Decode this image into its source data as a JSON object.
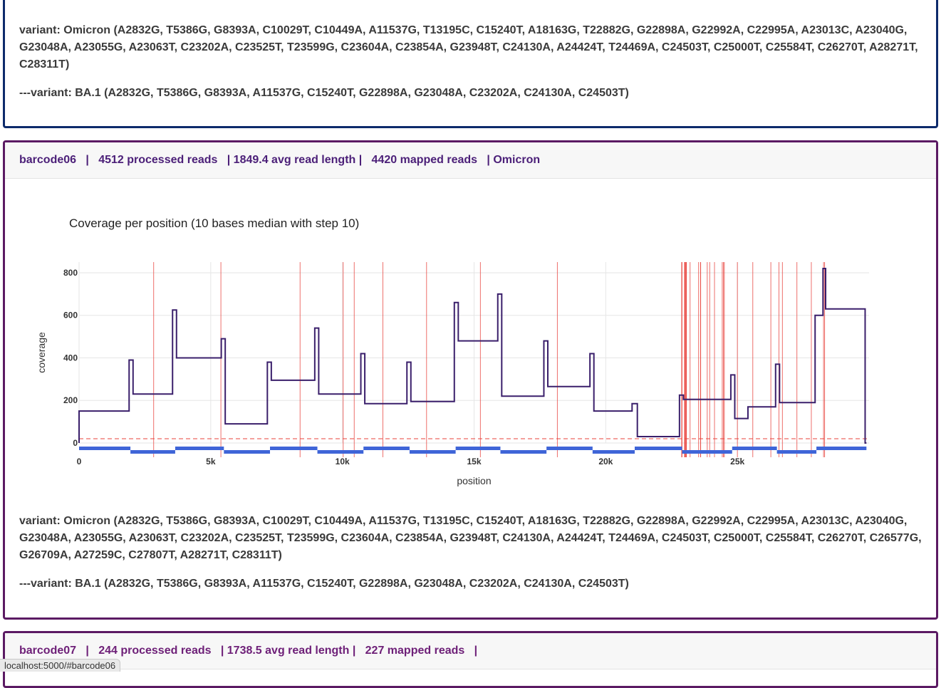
{
  "top_panel": {
    "variant_line": "variant: Omicron (A2832G, T5386G, G8393A, C10029T, C10449A, A11537G, T13195C, C15240T, A18163G, T22882G, G22898A, G22992A, C22995A, A23013C, A23040G, G23048A, A23055G, A23063T, C23202A, C23525T, T23599G, C23604A, C23854A, G23948T, C24130A, A24424T, T24469A, C24503T, C25000T, C25584T, C26270T, A28271T, C28311T)",
    "subvariant_line": "---variant: BA.1 (A2832G, T5386G, G8393A, A11537G, C15240T, G22898A, G23048A, C23202A, C24130A, C24503T)"
  },
  "barcode06": {
    "header": "barcode06   |   4512 processed reads   | 1849.4 avg read length |   4420 mapped reads   | Omicron",
    "chart_title": "Coverage per position (10 bases median with step 10)",
    "variant_line": "variant: Omicron (A2832G, T5386G, G8393A, C10029T, C10449A, A11537G, T13195C, C15240T, A18163G, T22882G, G22898A, G22992A, C22995A, A23013C, A23040G, G23048A, A23055G, A23063T, C23202A, C23525T, T23599G, C23604A, C23854A, G23948T, C24130A, A24424T, T24469A, C24503T, C25000T, C25584T, C26270T, C26577G, G26709A, A27259C, C27807T, A28271T, C28311T)",
    "subvariant_line": "---variant: BA.1 (A2832G, T5386G, G8393A, A11537G, C15240T, G22898A, G23048A, C23202A, C24130A, C24503T)"
  },
  "barcode07": {
    "header": "barcode07   |   244 processed reads   | 1738.5 avg read length |   227 mapped reads   |"
  },
  "status_bar": "localhost:5000/#barcode06",
  "chart_data": {
    "type": "line",
    "title": "Coverage per position (10 bases median with step 10)",
    "xlabel": "position",
    "ylabel": "coverage",
    "xlim": [
      0,
      30000
    ],
    "ylim": [
      0,
      850
    ],
    "x_ticks": [
      0,
      5000,
      10000,
      15000,
      20000,
      25000
    ],
    "x_tick_labels": [
      "0",
      "5k",
      "10k",
      "15k",
      "20k",
      "25k"
    ],
    "y_ticks": [
      0,
      200,
      400,
      600,
      800
    ],
    "threshold": 20,
    "series": [
      {
        "segments": [
          {
            "x0": 0,
            "x1": 1900,
            "y": 150
          },
          {
            "x0": 1900,
            "x1": 2050,
            "y": 390
          },
          {
            "x0": 2050,
            "x1": 3550,
            "y": 230
          },
          {
            "x0": 3550,
            "x1": 3700,
            "y": 625
          },
          {
            "x0": 3700,
            "x1": 5400,
            "y": 400
          },
          {
            "x0": 5400,
            "x1": 5550,
            "y": 490
          },
          {
            "x0": 5550,
            "x1": 7150,
            "y": 90
          },
          {
            "x0": 7150,
            "x1": 7300,
            "y": 380
          },
          {
            "x0": 7300,
            "x1": 8950,
            "y": 295
          },
          {
            "x0": 8950,
            "x1": 9100,
            "y": 540
          },
          {
            "x0": 9100,
            "x1": 10700,
            "y": 230
          },
          {
            "x0": 10700,
            "x1": 10850,
            "y": 420
          },
          {
            "x0": 10850,
            "x1": 12450,
            "y": 185
          },
          {
            "x0": 12450,
            "x1": 12600,
            "y": 380
          },
          {
            "x0": 12600,
            "x1": 14250,
            "y": 195
          },
          {
            "x0": 14250,
            "x1": 14400,
            "y": 660
          },
          {
            "x0": 14400,
            "x1": 15900,
            "y": 480
          },
          {
            "x0": 15900,
            "x1": 16050,
            "y": 700
          },
          {
            "x0": 16050,
            "x1": 17650,
            "y": 220
          },
          {
            "x0": 17650,
            "x1": 17800,
            "y": 480
          },
          {
            "x0": 17800,
            "x1": 19400,
            "y": 265
          },
          {
            "x0": 19400,
            "x1": 19550,
            "y": 420
          },
          {
            "x0": 19550,
            "x1": 21000,
            "y": 150
          },
          {
            "x0": 21000,
            "x1": 21200,
            "y": 185
          },
          {
            "x0": 21200,
            "x1": 22800,
            "y": 30
          },
          {
            "x0": 22800,
            "x1": 22950,
            "y": 225
          },
          {
            "x0": 22950,
            "x1": 24750,
            "y": 205
          },
          {
            "x0": 24750,
            "x1": 24900,
            "y": 320
          },
          {
            "x0": 24900,
            "x1": 25400,
            "y": 115
          },
          {
            "x0": 25400,
            "x1": 26450,
            "y": 170
          },
          {
            "x0": 26450,
            "x1": 26600,
            "y": 370
          },
          {
            "x0": 26600,
            "x1": 27950,
            "y": 190
          },
          {
            "x0": 27950,
            "x1": 28250,
            "y": 600
          },
          {
            "x0": 28250,
            "x1": 28350,
            "y": 820
          },
          {
            "x0": 28350,
            "x1": 29850,
            "y": 630
          },
          {
            "x0": 29850,
            "x1": 29900,
            "y": 0
          }
        ]
      }
    ],
    "mutation_positions": [
      2832,
      5386,
      8393,
      10029,
      10449,
      11537,
      13195,
      15240,
      18163,
      22882,
      22898,
      22992,
      22995,
      23013,
      23040,
      23048,
      23055,
      23063,
      23202,
      23525,
      23599,
      23604,
      23854,
      23948,
      24130,
      24424,
      24469,
      24503,
      25000,
      25584,
      26270,
      26577,
      26709,
      27259,
      27807,
      28271,
      28311
    ],
    "amplicons": [
      {
        "x0": 0,
        "x1": 1950,
        "row": 0
      },
      {
        "x0": 1950,
        "x1": 3650,
        "row": 1
      },
      {
        "x0": 3650,
        "x1": 5500,
        "row": 0
      },
      {
        "x0": 5500,
        "x1": 7250,
        "row": 1
      },
      {
        "x0": 7250,
        "x1": 9050,
        "row": 0
      },
      {
        "x0": 9050,
        "x1": 10800,
        "row": 1
      },
      {
        "x0": 10800,
        "x1": 12550,
        "row": 0
      },
      {
        "x0": 12550,
        "x1": 14300,
        "row": 1
      },
      {
        "x0": 14300,
        "x1": 16000,
        "row": 0
      },
      {
        "x0": 16000,
        "x1": 17750,
        "row": 1
      },
      {
        "x0": 17750,
        "x1": 19500,
        "row": 0
      },
      {
        "x0": 19500,
        "x1": 21100,
        "row": 1
      },
      {
        "x0": 21100,
        "x1": 22900,
        "row": 0
      },
      {
        "x0": 22900,
        "x1": 24800,
        "row": 1
      },
      {
        "x0": 24800,
        "x1": 26500,
        "row": 0
      },
      {
        "x0": 26500,
        "x1": 28000,
        "row": 1
      },
      {
        "x0": 28000,
        "x1": 29900,
        "row": 0
      }
    ],
    "colors": {
      "coverage_line": "#3a1f6b",
      "mutation_line": "#e8403a",
      "threshold_line": "#e8403a",
      "amplicon": "#3f65d8",
      "grid": "#e6e6e6"
    }
  }
}
